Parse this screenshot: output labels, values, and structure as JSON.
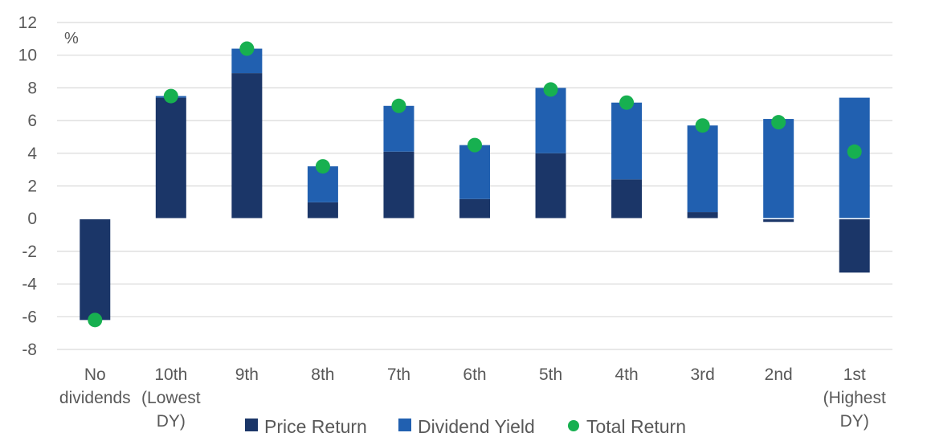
{
  "chart_data": {
    "type": "bar",
    "stacked": true,
    "unit_label": "%",
    "categories": [
      [
        "No",
        "dividends"
      ],
      [
        "10th",
        "(Lowest",
        "DY)"
      ],
      [
        "9th"
      ],
      [
        "8th"
      ],
      [
        "7th"
      ],
      [
        "6th"
      ],
      [
        "5th"
      ],
      [
        "4th"
      ],
      [
        "3rd"
      ],
      [
        "2nd"
      ],
      [
        "1st",
        "(Highest",
        "DY)"
      ]
    ],
    "series": [
      {
        "name": "Price Return",
        "kind": "bar",
        "values": [
          -6.2,
          7.4,
          8.9,
          1.0,
          4.1,
          1.2,
          4.0,
          2.4,
          0.4,
          -0.2,
          -3.3
        ]
      },
      {
        "name": "Dividend Yield",
        "kind": "bar",
        "values": [
          0.0,
          0.1,
          1.5,
          2.2,
          2.8,
          3.3,
          4.0,
          4.7,
          5.3,
          6.1,
          7.4
        ]
      },
      {
        "name": "Total Return",
        "kind": "point",
        "values": [
          -6.2,
          7.5,
          10.4,
          3.2,
          6.9,
          4.5,
          7.9,
          7.1,
          5.7,
          5.9,
          4.1
        ]
      }
    ],
    "ylim": [
      -8,
      12
    ],
    "yticks": [
      -8,
      -6,
      -4,
      -2,
      0,
      2,
      4,
      6,
      8,
      10,
      12
    ],
    "grid": true,
    "legend_position": "bottom",
    "colors": {
      "price": "#1b3668",
      "dividend": "#2160b0",
      "total": "#17b050",
      "grid": "#d9d9d9",
      "text": "#595959"
    }
  }
}
